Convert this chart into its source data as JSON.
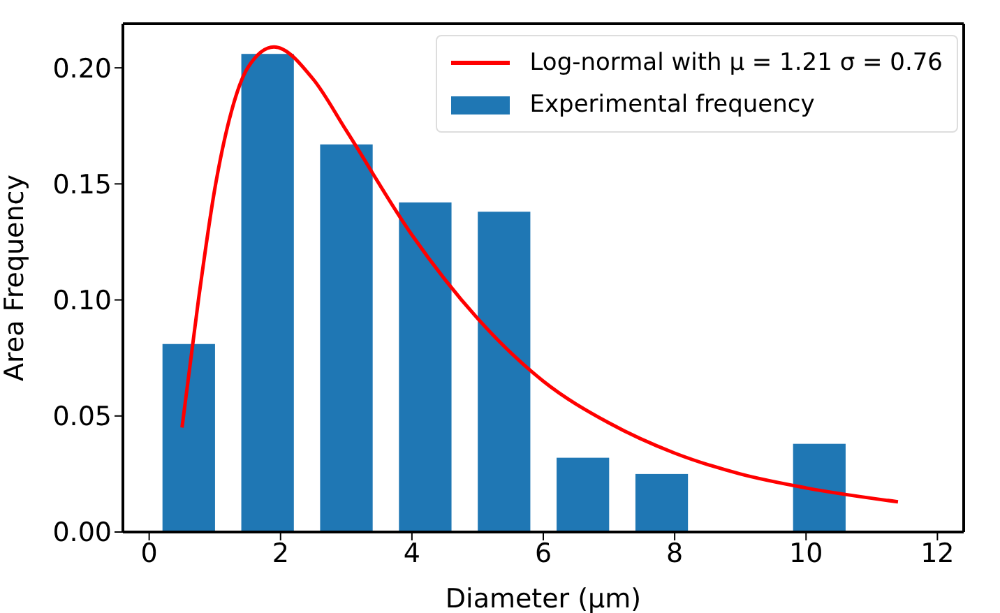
{
  "chart_data": {
    "type": "histogram",
    "xlabel": "Diameter (μm)",
    "ylabel": "Area Frequency",
    "bins": [
      0,
      1.2,
      2.4,
      3.6,
      4.8,
      6.0,
      7.2,
      8.4,
      9.6,
      10.8
    ],
    "series": [
      {
        "name": "Experimental frequency",
        "type": "histogram",
        "color": "#1f77b4",
        "values": [
          0.081,
          0.206,
          0.167,
          0.142,
          0.138,
          0.032,
          0.025,
          0,
          0.038
        ]
      },
      {
        "name": "Log-normal with μ = 1.21 σ = 0.76",
        "type": "line",
        "color": "#ff0000",
        "x": [
          0.5,
          0.75,
          1,
          1.25,
          1.5,
          1.9,
          2.5,
          3,
          4,
          5,
          6,
          7,
          8,
          9,
          10,
          11.4
        ],
        "values": [
          0.045,
          0.1,
          0.148,
          0.181,
          0.2,
          0.209,
          0.195,
          0.173,
          0.128,
          0.092,
          0.065,
          0.047,
          0.034,
          0.025,
          0.019,
          0.013
        ]
      }
    ],
    "xlim": [
      -0.4,
      12.4
    ],
    "xticks": [
      0,
      2,
      4,
      6,
      8,
      10,
      12
    ],
    "ylim": [
      0,
      0.219
    ],
    "yticks": [
      {
        "value": 0,
        "label": "0.00"
      },
      0.05,
      {
        "value": 0.1,
        "label": "0.10"
      },
      0.15,
      {
        "value": 0.2,
        "label": "0.20"
      }
    ],
    "grid": false,
    "legend": "top right",
    "marker": "none",
    "line_style": "solid"
  }
}
